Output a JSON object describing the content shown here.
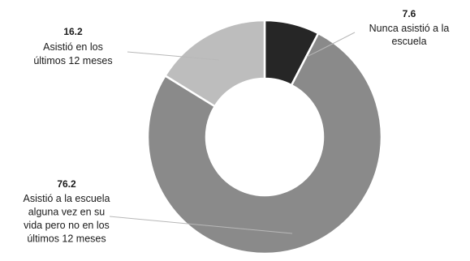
{
  "chart_data": {
    "type": "pie",
    "variant": "donut",
    "title": "",
    "slices": [
      {
        "value": 7.6,
        "value_label": "7.6",
        "label_lines": [
          "Nunca asistió a la",
          "escuela"
        ],
        "color": "#262626"
      },
      {
        "value": 76.2,
        "value_label": "76.2",
        "label_lines": [
          "Asistió a la escuela",
          "alguna vez en su",
          "vida pero no en los",
          "últimos 12 meses"
        ],
        "color": "#8a8a8a"
      },
      {
        "value": 16.2,
        "value_label": "16.2",
        "label_lines": [
          "Asistió en los",
          "últimos 12 meses"
        ],
        "color": "#bdbdbd"
      }
    ],
    "start_angle_deg": 0,
    "direction": "clockwise",
    "legend": "none"
  }
}
